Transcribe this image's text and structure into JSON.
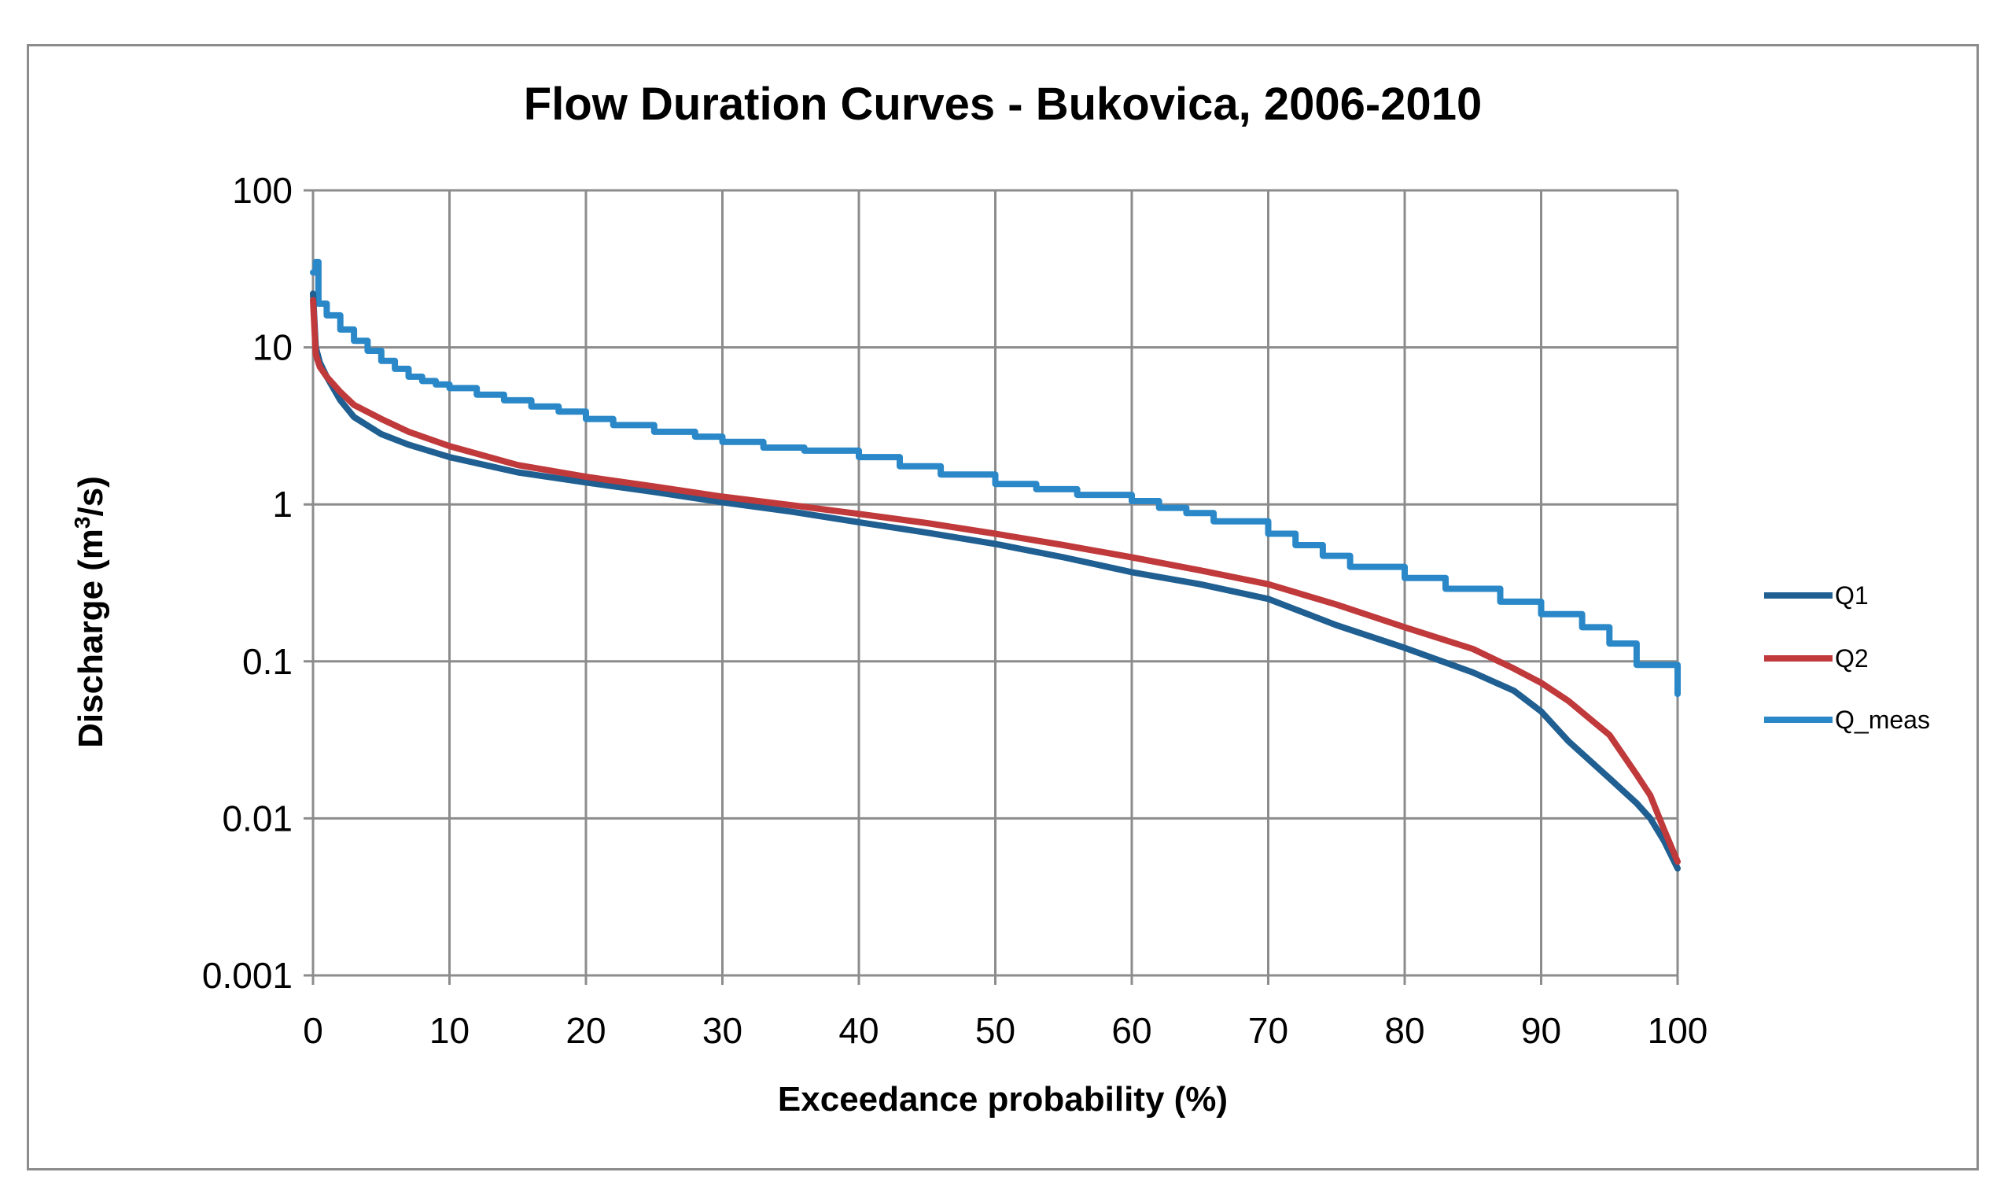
{
  "chart_data": {
    "type": "line",
    "title": "Flow Duration Curves - Bukovica, 2006-2010",
    "xlabel": "Exceedance probability (%)",
    "ylabel_prefix": "Discharge (m",
    "ylabel_sup": "3",
    "ylabel_suffix": "/s)",
    "xlim": [
      0,
      100
    ],
    "ylim": [
      0.001,
      100
    ],
    "yscale": "log",
    "grid": true,
    "legend_position": "right",
    "x_ticks": [
      "0",
      "10",
      "20",
      "30",
      "40",
      "50",
      "60",
      "70",
      "80",
      "90",
      "100"
    ],
    "y_ticks": [
      "100",
      "10",
      "1",
      "0.1",
      "0.01",
      "0.001"
    ],
    "series": [
      {
        "name": "Q1",
        "color": "#1f5f91",
        "x": [
          0,
          0.2,
          0.5,
          1,
          2,
          3,
          5,
          7,
          10,
          15,
          20,
          25,
          30,
          35,
          40,
          45,
          50,
          55,
          60,
          65,
          70,
          75,
          80,
          85,
          88,
          90,
          92,
          95,
          97,
          98,
          99,
          100
        ],
        "y": [
          22,
          10,
          8,
          6.5,
          4.6,
          3.6,
          2.8,
          2.4,
          2.0,
          1.6,
          1.38,
          1.2,
          1.03,
          0.9,
          0.77,
          0.66,
          0.56,
          0.46,
          0.37,
          0.31,
          0.25,
          0.17,
          0.122,
          0.085,
          0.065,
          0.048,
          0.031,
          0.018,
          0.0125,
          0.01,
          0.0072,
          0.0048
        ]
      },
      {
        "name": "Q2",
        "color": "#c0393b",
        "x": [
          0,
          0.2,
          0.5,
          1,
          2,
          3,
          5,
          7,
          10,
          15,
          20,
          25,
          30,
          35,
          40,
          45,
          50,
          55,
          60,
          65,
          70,
          75,
          80,
          85,
          88,
          90,
          92,
          95,
          97,
          98,
          99,
          100
        ],
        "y": [
          20,
          9,
          7.5,
          6.5,
          5.2,
          4.3,
          3.5,
          2.9,
          2.35,
          1.78,
          1.5,
          1.3,
          1.12,
          0.99,
          0.87,
          0.76,
          0.65,
          0.55,
          0.46,
          0.38,
          0.31,
          0.23,
          0.165,
          0.12,
          0.09,
          0.073,
          0.056,
          0.034,
          0.019,
          0.014,
          0.0085,
          0.0053
        ]
      },
      {
        "name": "Q_meas",
        "color": "#2a88c8",
        "x": [
          0,
          0.2,
          0.4,
          1,
          2,
          3,
          4,
          5,
          6,
          7,
          8,
          9,
          10,
          12,
          14,
          16,
          18,
          20,
          22,
          25,
          28,
          30,
          33,
          36,
          40,
          43,
          46,
          50,
          53,
          56,
          60,
          62,
          64,
          66,
          70,
          72,
          74,
          76,
          80,
          83,
          87,
          90,
          93,
          95,
          97,
          98,
          99.5,
          100
        ],
        "y": [
          30,
          35,
          19,
          16,
          13,
          11,
          9.5,
          8.2,
          7.3,
          6.5,
          6.1,
          5.8,
          5.5,
          5.0,
          4.6,
          4.2,
          3.9,
          3.5,
          3.2,
          2.9,
          2.7,
          2.5,
          2.3,
          2.2,
          2.0,
          1.75,
          1.55,
          1.35,
          1.25,
          1.15,
          1.05,
          0.95,
          0.88,
          0.78,
          0.65,
          0.55,
          0.47,
          0.4,
          0.34,
          0.29,
          0.24,
          0.2,
          0.165,
          0.13,
          0.095,
          0.095,
          0.095,
          0.062
        ]
      }
    ]
  }
}
